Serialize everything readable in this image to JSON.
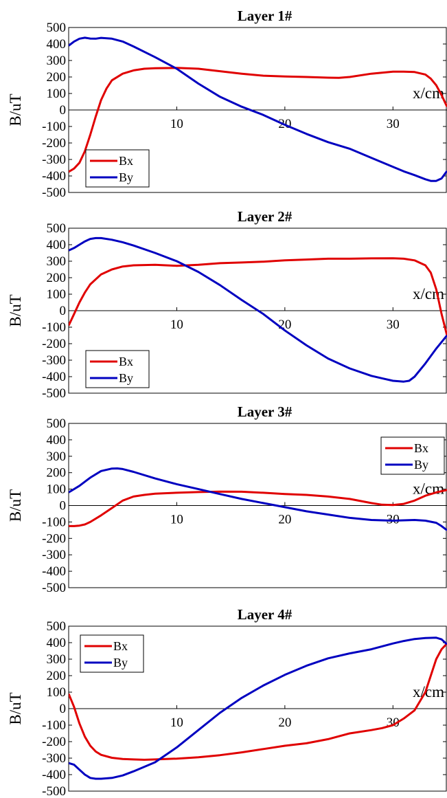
{
  "chart_data": [
    {
      "type": "line",
      "title": "Layer 1#",
      "xlabel": "x/cm",
      "ylabel": "B/uT",
      "xlim": [
        0,
        35
      ],
      "ylim": [
        -500,
        500
      ],
      "yticks": [
        500,
        400,
        300,
        200,
        100,
        0,
        -100,
        -200,
        -300,
        -400,
        -500
      ],
      "xticks": [
        10,
        20,
        30
      ],
      "legend_position": "bottom-left",
      "series": [
        {
          "name": "Bx",
          "color": "#e00000",
          "x": [
            0,
            0.5,
            1,
            1.5,
            2,
            2.5,
            3,
            3.5,
            4,
            5,
            6,
            7,
            8,
            10,
            12,
            14,
            16,
            18,
            20,
            22,
            24,
            25,
            26,
            28,
            30,
            31,
            32,
            33,
            33.5,
            34,
            34.5,
            35
          ],
          "y": [
            -375,
            -355,
            -320,
            -250,
            -150,
            -40,
            60,
            130,
            180,
            220,
            240,
            250,
            253,
            255,
            250,
            235,
            220,
            208,
            203,
            200,
            196,
            195,
            200,
            220,
            232,
            232,
            230,
            215,
            190,
            150,
            90,
            20
          ]
        },
        {
          "name": "By",
          "color": "#0000c0",
          "x": [
            0,
            0.5,
            1,
            1.5,
            2,
            2.5,
            3,
            4,
            5,
            6,
            8,
            10,
            12,
            14,
            16,
            18,
            20,
            22,
            24,
            26,
            28,
            30,
            31,
            32,
            33,
            33.5,
            34,
            34.5,
            35
          ],
          "y": [
            390,
            415,
            432,
            438,
            433,
            432,
            437,
            432,
            415,
            385,
            320,
            250,
            160,
            80,
            20,
            -30,
            -90,
            -145,
            -195,
            -235,
            -290,
            -345,
            -372,
            -395,
            -420,
            -430,
            -430,
            -415,
            -370
          ]
        }
      ]
    },
    {
      "type": "line",
      "title": "Layer 2#",
      "xlabel": "x/cm",
      "ylabel": "B/uT",
      "xlim": [
        0,
        35
      ],
      "ylim": [
        -500,
        500
      ],
      "yticks": [
        500,
        400,
        300,
        200,
        100,
        0,
        -100,
        -200,
        -300,
        -400,
        -500
      ],
      "xticks": [
        10,
        20,
        30
      ],
      "legend_position": "bottom-left",
      "series": [
        {
          "name": "Bx",
          "color": "#e00000",
          "x": [
            0,
            0.5,
            1,
            1.5,
            2,
            3,
            4,
            5,
            6,
            8,
            10,
            12,
            14,
            16,
            18,
            20,
            22,
            24,
            26,
            28,
            30,
            31,
            32,
            33,
            33.5,
            34,
            34.5,
            35
          ],
          "y": [
            -90,
            -20,
            50,
            110,
            160,
            220,
            250,
            268,
            275,
            278,
            272,
            278,
            288,
            292,
            297,
            305,
            310,
            315,
            315,
            317,
            318,
            315,
            305,
            275,
            230,
            130,
            -20,
            -150
          ]
        },
        {
          "name": "By",
          "color": "#0000c0",
          "x": [
            0,
            0.5,
            1,
            1.5,
            2,
            2.5,
            3,
            4,
            5,
            6,
            8,
            10,
            12,
            14,
            16,
            18,
            20,
            22,
            24,
            26,
            28,
            29,
            30,
            31,
            31.5,
            32,
            33,
            34,
            35
          ],
          "y": [
            365,
            380,
            400,
            420,
            435,
            440,
            440,
            430,
            415,
            395,
            350,
            300,
            235,
            155,
            65,
            -20,
            -120,
            -210,
            -290,
            -350,
            -395,
            -410,
            -425,
            -430,
            -425,
            -400,
            -320,
            -230,
            -150
          ]
        }
      ]
    },
    {
      "type": "line",
      "title": "Layer 3#",
      "xlabel": "x/cm",
      "ylabel": "B/uT",
      "xlim": [
        0,
        35
      ],
      "ylim": [
        -500,
        500
      ],
      "yticks": [
        500,
        400,
        300,
        200,
        100,
        0,
        -100,
        -200,
        -300,
        -400,
        -500
      ],
      "xticks": [
        10,
        20,
        30
      ],
      "legend_position": "top-right",
      "series": [
        {
          "name": "Bx",
          "color": "#e00000",
          "x": [
            0,
            0.5,
            1,
            1.5,
            2,
            3,
            4,
            5,
            6,
            7,
            8,
            10,
            12,
            14,
            16,
            18,
            20,
            22,
            24,
            26,
            28,
            29,
            30,
            31,
            32,
            33,
            34,
            35
          ],
          "y": [
            -125,
            -125,
            -122,
            -115,
            -100,
            -60,
            -15,
            30,
            55,
            65,
            72,
            78,
            82,
            85,
            84,
            78,
            70,
            65,
            55,
            40,
            15,
            5,
            3,
            10,
            30,
            60,
            80,
            95
          ]
        },
        {
          "name": "By",
          "color": "#0000c0",
          "x": [
            0,
            1,
            2,
            3,
            4,
            4.5,
            5,
            6,
            8,
            10,
            12,
            14,
            16,
            18,
            20,
            22,
            24,
            26,
            28,
            30,
            32,
            33,
            34,
            34.5,
            35
          ],
          "y": [
            80,
            120,
            170,
            210,
            225,
            226,
            222,
            205,
            165,
            130,
            100,
            70,
            40,
            15,
            -10,
            -35,
            -55,
            -75,
            -88,
            -92,
            -88,
            -92,
            -105,
            -125,
            -150
          ]
        }
      ]
    },
    {
      "type": "line",
      "title": "Layer 4#",
      "xlabel": "x/cm",
      "ylabel": "B/uT",
      "xlim": [
        0,
        35
      ],
      "ylim": [
        -500,
        500
      ],
      "yticks": [
        500,
        400,
        300,
        200,
        100,
        0,
        -100,
        -200,
        -300,
        -400,
        -500
      ],
      "xticks": [
        10,
        20,
        30
      ],
      "legend_position": "top-left",
      "series": [
        {
          "name": "Bx",
          "color": "#e00000",
          "x": [
            0,
            0.5,
            1,
            1.5,
            2,
            2.5,
            3,
            4,
            5,
            6,
            7,
            8,
            10,
            12,
            14,
            16,
            18,
            20,
            22,
            24,
            26,
            28,
            29,
            30,
            31,
            32,
            33,
            33.5,
            34,
            34.5,
            35
          ],
          "y": [
            90,
            10,
            -90,
            -170,
            -225,
            -260,
            -280,
            -298,
            -305,
            -308,
            -310,
            -308,
            -303,
            -295,
            -282,
            -265,
            -245,
            -225,
            -210,
            -185,
            -150,
            -130,
            -118,
            -100,
            -60,
            -10,
            100,
            200,
            300,
            360,
            395
          ]
        },
        {
          "name": "By",
          "color": "#0000c0",
          "x": [
            0,
            0.5,
            1,
            1.5,
            2,
            2.5,
            3,
            4,
            5,
            6,
            8,
            10,
            12,
            14,
            16,
            18,
            20,
            22,
            24,
            26,
            28,
            30,
            31,
            32,
            33,
            34,
            34.5,
            35
          ],
          "y": [
            -330,
            -340,
            -370,
            -400,
            -420,
            -425,
            -425,
            -420,
            -405,
            -380,
            -325,
            -235,
            -130,
            -25,
            65,
            140,
            205,
            260,
            305,
            335,
            360,
            395,
            410,
            422,
            428,
            430,
            420,
            390
          ]
        }
      ]
    }
  ]
}
